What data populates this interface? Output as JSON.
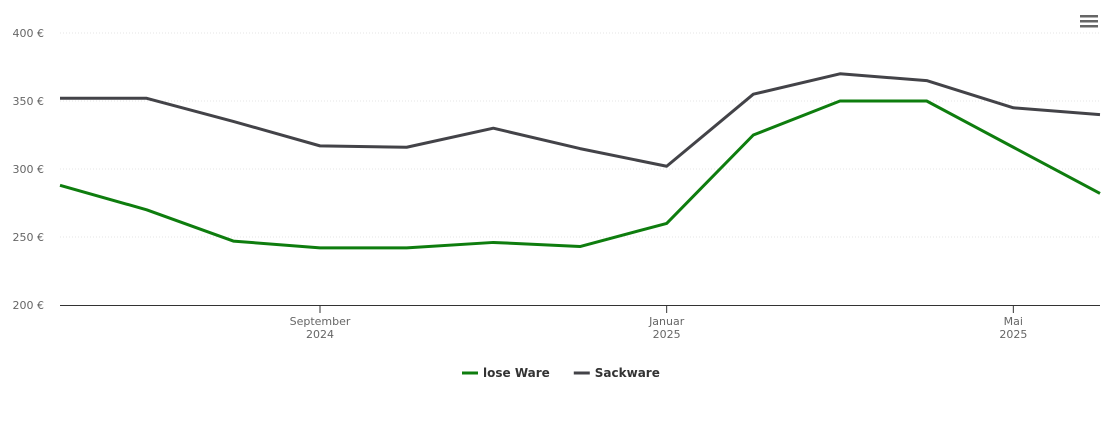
{
  "chart_data": {
    "type": "line",
    "x": [
      "2024-06",
      "2024-07",
      "2024-08",
      "2024-09",
      "2024-10",
      "2024-11",
      "2024-12",
      "2025-01",
      "2025-02",
      "2025-03",
      "2025-04",
      "2025-05",
      "2025-06"
    ],
    "xlim": [
      "2024-06",
      "2025-06"
    ],
    "xticks": [
      {
        "value": "2024-09",
        "label": "September 2024"
      },
      {
        "value": "2025-01",
        "label": "Januar 2025"
      },
      {
        "value": "2025-05",
        "label": "Mai 2025"
      }
    ],
    "ylim": [
      200,
      400
    ],
    "yticks": [
      {
        "value": 200,
        "label": "200 €"
      },
      {
        "value": 250,
        "label": "250 €"
      },
      {
        "value": 300,
        "label": "300 €"
      },
      {
        "value": 350,
        "label": "350 €"
      },
      {
        "value": 400,
        "label": "400 €"
      }
    ],
    "grid": true,
    "legend": "bottom",
    "series": [
      {
        "name": "lose Ware",
        "color": "#0e7d0e",
        "values": [
          288,
          270,
          247,
          242,
          242,
          246,
          243,
          260,
          325,
          350,
          350,
          316,
          282
        ]
      },
      {
        "name": "Sackware",
        "color": "#434348",
        "values": [
          352,
          352,
          335,
          317,
          316,
          330,
          315,
          302,
          355,
          370,
          365,
          345,
          340
        ]
      }
    ]
  }
}
